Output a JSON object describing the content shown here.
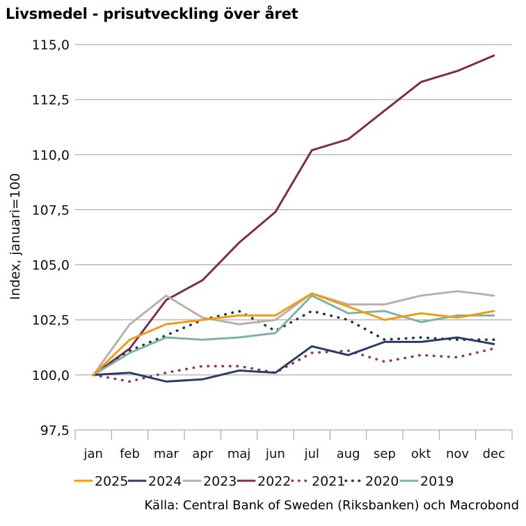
{
  "chart_data": {
    "type": "line",
    "title": "Livsmedel - prisutveckling över året",
    "ylabel": "Index, januari=100",
    "xlabel": "",
    "ylim": [
      97.5,
      115.0
    ],
    "yticks": [
      "97,5",
      "100,0",
      "102,5",
      "105,0",
      "107,5",
      "110,0",
      "112,5",
      "115,0"
    ],
    "ytick_values": [
      97.5,
      100.0,
      102.5,
      105.0,
      107.5,
      110.0,
      112.5,
      115.0
    ],
    "categories": [
      "jan",
      "feb",
      "mar",
      "apr",
      "maj",
      "jun",
      "jul",
      "aug",
      "sep",
      "okt",
      "nov",
      "dec"
    ],
    "grid": "horizontal",
    "legend_position": "bottom",
    "series": [
      {
        "name": "2025",
        "color": "#f39c12",
        "style": "solid",
        "values": [
          100.0,
          101.6,
          102.3,
          102.5,
          102.7,
          102.7,
          103.7,
          103.1,
          102.5,
          102.8,
          102.6,
          102.9
        ]
      },
      {
        "name": "2024",
        "color": "#2b3a67",
        "style": "solid",
        "values": [
          100.0,
          100.1,
          99.7,
          99.8,
          100.2,
          100.1,
          101.3,
          100.9,
          101.5,
          101.5,
          101.7,
          101.4
        ]
      },
      {
        "name": "2023",
        "color": "#b9b0a7",
        "style": "solid",
        "values": [
          100.0,
          102.3,
          103.6,
          102.6,
          102.3,
          102.5,
          103.7,
          103.2,
          103.2,
          103.6,
          103.8,
          103.6
        ]
      },
      {
        "name": "2022",
        "color": "#7b2c4f",
        "style": "solid",
        "values": [
          100.0,
          101.2,
          103.4,
          104.3,
          106.0,
          107.4,
          110.2,
          110.7,
          112.0,
          113.3,
          113.8,
          114.5
        ]
      },
      {
        "name": "2021",
        "color": "#8e3b5c",
        "style": "dotted",
        "values": [
          100.0,
          99.7,
          100.1,
          100.4,
          100.4,
          100.1,
          101.0,
          101.1,
          100.6,
          100.9,
          100.8,
          101.2
        ]
      },
      {
        "name": "2020",
        "color": "#1d3a44",
        "style": "dotted",
        "values": [
          100.0,
          101.1,
          101.8,
          102.5,
          102.9,
          102.0,
          102.9,
          102.5,
          101.6,
          101.7,
          101.6,
          101.6
        ]
      },
      {
        "name": "2019",
        "color": "#7fb3a6",
        "style": "solid",
        "values": [
          100.0,
          101.0,
          101.7,
          101.6,
          101.7,
          101.9,
          103.6,
          102.8,
          102.9,
          102.4,
          102.7,
          102.7
        ]
      }
    ],
    "source": "Källa: Central Bank of Sweden (Riksbanken) och Macrobond"
  }
}
